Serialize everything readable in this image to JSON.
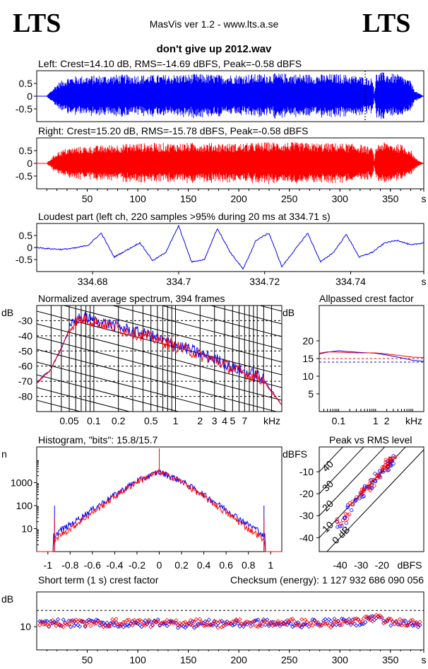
{
  "header": {
    "logo_left": "LTS",
    "logo_right": "LTS",
    "version": "MasVis ver 1.2 - www.lts.a.se",
    "filename": "don't give up 2012.wav"
  },
  "colors": {
    "left": "#0000ff",
    "right": "#ff0000",
    "axis": "#000000"
  },
  "panels": {
    "left_wave": {
      "title": "Left: Crest=14.10 dB, RMS=-14.69 dBFS, Peak=-0.58 dBFS",
      "y_ticks": [
        "0.5",
        "0",
        "-0.5"
      ]
    },
    "right_wave": {
      "title": "Right: Crest=15.20 dB, RMS=-15.78 dBFS, Peak=-0.58 dBFS",
      "y_ticks": [
        "0.5",
        "0",
        "-0.5"
      ],
      "x_ticks": [
        "50",
        "100",
        "150",
        "200",
        "250",
        "300",
        "350",
        "s"
      ]
    },
    "loudest": {
      "title": "Loudest part (left  ch, 220 samples >95% during 20 ms at 334.71 s)",
      "y_ticks": [
        "0.5",
        "0",
        "-0.5"
      ],
      "x_ticks": [
        "334.68",
        "334.7",
        "334.72",
        "334.74",
        "s"
      ]
    },
    "spectrum": {
      "title": "Normalized average spectrum, 394 frames",
      "ylabel": "dB",
      "y_ticks": [
        "-30",
        "-40",
        "-50",
        "-60",
        "-70",
        "-80"
      ],
      "x_ticks": [
        "0.05",
        "0.1",
        "0.2",
        "0.5",
        "1",
        "2",
        "3",
        "4",
        "5",
        "7",
        "kHz"
      ]
    },
    "allpass": {
      "title": "Allpassed crest factor",
      "ylabel": "dB",
      "y_ticks": [
        "20",
        "15",
        "10",
        "5"
      ],
      "x_ticks": [
        "0.1",
        "1",
        "2",
        "kHz"
      ]
    },
    "histogram": {
      "title": "Histogram, \"bits\": 15.8/15.7",
      "ylabel": "n",
      "y_ticks": [
        "1000",
        "100",
        "10"
      ],
      "x_ticks": [
        "-1",
        "-0.8",
        "-0.6",
        "-0.4",
        "-0.2",
        "0",
        "0.2",
        "0.4",
        "0.6",
        "0.8",
        "1"
      ]
    },
    "peak_rms": {
      "title": "Peak vs RMS level",
      "ylabel": "dBFS",
      "y_ticks": [
        "-10",
        "-20",
        "-30",
        "-40"
      ],
      "x_ticks": [
        "-40",
        "-30",
        "-20",
        "dBFS"
      ],
      "diag_labels": [
        "40",
        "30",
        "20",
        "10",
        "0 dB"
      ]
    },
    "crest_short": {
      "title": "Short term (1 s) crest factor",
      "checksum": "Checksum (energy):  1 127 932 686 090 056",
      "ylabel": "dB",
      "y_ticks": [
        "10"
      ],
      "x_ticks": [
        "50",
        "100",
        "150",
        "200",
        "250",
        "300",
        "350",
        "s"
      ]
    }
  },
  "chart_data": [
    {
      "type": "area",
      "title": "Left: Crest=14.10 dB, RMS=-14.69 dBFS, Peak=-0.58 dBFS",
      "xlabel": "s",
      "ylim": [
        -1,
        1
      ],
      "xlim": [
        0,
        383
      ],
      "series": [
        {
          "name": "Left",
          "envelope": {
            "x": [
              0,
              5,
              10,
              20,
              30,
              40,
              60,
              80,
              100,
              120,
              140,
              160,
              180,
              200,
              220,
              240,
              260,
              280,
              300,
              320,
              333,
              334,
              336,
              340,
              350,
              360,
              370,
              375,
              383
            ],
            "y": [
              0,
              0,
              0.02,
              0.5,
              0.75,
              0.8,
              0.82,
              0.85,
              0.85,
              0.84,
              0.86,
              0.88,
              0.85,
              0.86,
              0.88,
              0.9,
              0.88,
              0.86,
              0.88,
              0.8,
              0.7,
              0.1,
              0.9,
              0.95,
              0.9,
              0.85,
              0.6,
              0.2,
              0
            ]
          }
        }
      ]
    },
    {
      "type": "area",
      "title": "Right: Crest=15.20 dB, RMS=-15.78 dBFS, Peak=-0.58 dBFS",
      "xlabel": "s",
      "ylim": [
        -1,
        1
      ],
      "xlim": [
        0,
        383
      ],
      "series": [
        {
          "name": "Right",
          "envelope": {
            "x": [
              0,
              5,
              10,
              20,
              30,
              40,
              60,
              80,
              100,
              120,
              140,
              160,
              180,
              200,
              220,
              240,
              260,
              280,
              300,
              320,
              333,
              334,
              336,
              340,
              350,
              360,
              370,
              375,
              383
            ],
            "y": [
              0,
              0,
              0.02,
              0.45,
              0.6,
              0.65,
              0.7,
              0.75,
              0.8,
              0.8,
              0.8,
              0.82,
              0.8,
              0.78,
              0.82,
              0.85,
              0.82,
              0.8,
              0.8,
              0.75,
              0.6,
              0.1,
              0.7,
              0.85,
              0.8,
              0.75,
              0.55,
              0.2,
              0
            ]
          }
        }
      ]
    },
    {
      "type": "line",
      "title": "Loudest part (left  ch, 220 samples >95% during 20 ms at 334.71 s)",
      "xlabel": "s",
      "xlim": [
        334.667,
        334.757
      ],
      "ylim": [
        -1,
        1
      ],
      "series": [
        {
          "name": "Left",
          "x": [
            334.667,
            334.67,
            334.673,
            334.676,
            334.679,
            334.682,
            334.685,
            334.688,
            334.691,
            334.694,
            334.697,
            334.7,
            334.703,
            334.706,
            334.709,
            334.712,
            334.715,
            334.718,
            334.721,
            334.724,
            334.727,
            334.73,
            334.733,
            334.736,
            334.739,
            334.742,
            334.745,
            334.748,
            334.751,
            334.754,
            334.757
          ],
          "y": [
            0,
            -0.05,
            -0.08,
            -0.02,
            0.1,
            0.6,
            -0.4,
            -0.1,
            0.2,
            -0.55,
            -0.2,
            0.9,
            -0.6,
            -0.5,
            0.8,
            -0.2,
            -0.9,
            0.3,
            0.6,
            -0.8,
            -0.1,
            0.6,
            -0.6,
            -0.2,
            0.55,
            -0.4,
            -0.2,
            0.2,
            0.3,
            0.1,
            0.2
          ]
        }
      ]
    },
    {
      "type": "line",
      "title": "Normalized average spectrum, 394 frames",
      "xlabel": "kHz",
      "ylabel": "dB",
      "xlim": [
        0.02,
        20
      ],
      "ylim": [
        -90,
        -20
      ],
      "x_scale": "log",
      "grid": true,
      "series": [
        {
          "name": "Left",
          "x": [
            0.02,
            0.03,
            0.04,
            0.05,
            0.06,
            0.08,
            0.1,
            0.15,
            0.2,
            0.3,
            0.5,
            0.7,
            1,
            1.5,
            2,
            3,
            4,
            5,
            7,
            10,
            12,
            15,
            20
          ],
          "y": [
            -71,
            -62,
            -48,
            -36,
            -29,
            -28,
            -30,
            -32,
            -34,
            -37,
            -40,
            -43,
            -46,
            -49,
            -52,
            -55,
            -58,
            -61,
            -64,
            -66,
            -69,
            -76,
            -86
          ]
        },
        {
          "name": "Right",
          "x": [
            0.02,
            0.03,
            0.04,
            0.05,
            0.06,
            0.08,
            0.1,
            0.15,
            0.2,
            0.3,
            0.5,
            0.7,
            1,
            1.5,
            2,
            3,
            4,
            5,
            7,
            10,
            12,
            15,
            20
          ],
          "y": [
            -71,
            -62,
            -48,
            -36,
            -30,
            -29,
            -31,
            -33,
            -35,
            -38,
            -41,
            -44,
            -47,
            -50,
            -53,
            -56,
            -59,
            -62,
            -65,
            -67,
            -70,
            -77,
            -86
          ]
        }
      ]
    },
    {
      "type": "line",
      "title": "Allpassed crest factor",
      "xlabel": "kHz",
      "ylabel": "dB",
      "xlim": [
        0.03,
        20
      ],
      "ylim": [
        0,
        25
      ],
      "x_scale": "log",
      "series": [
        {
          "name": "Left",
          "x": [
            0.03,
            0.05,
            0.1,
            0.3,
            1,
            2,
            5,
            10,
            20
          ],
          "y": [
            16.3,
            16.8,
            17.2,
            16.8,
            16.5,
            16.0,
            15.2,
            14.5,
            14.2
          ]
        },
        {
          "name": "Right",
          "x": [
            0.03,
            0.05,
            0.1,
            0.3,
            1,
            2,
            5,
            10,
            20
          ],
          "y": [
            16.5,
            16.9,
            16.8,
            16.6,
            16.6,
            16.3,
            15.8,
            15.4,
            15.3
          ]
        }
      ]
    },
    {
      "type": "line",
      "title": "Histogram, \"bits\": 15.8/15.7",
      "ylabel": "n",
      "xlim": [
        -1.1,
        1.1
      ],
      "y_scale": "log",
      "ylim": [
        1,
        100000
      ],
      "series": [
        {
          "name": "Left",
          "x": [
            -0.93,
            -0.9,
            -0.8,
            -0.6,
            -0.4,
            -0.2,
            0,
            0.2,
            0.4,
            0.6,
            0.8,
            0.9,
            0.93
          ],
          "y": [
            5,
            8,
            15,
            70,
            300,
            1200,
            3000,
            1200,
            300,
            70,
            15,
            8,
            5
          ]
        },
        {
          "name": "Right",
          "x": [
            -0.93,
            -0.9,
            -0.8,
            -0.6,
            -0.4,
            -0.2,
            0,
            0.2,
            0.4,
            0.6,
            0.8,
            0.9,
            0.93
          ],
          "y": [
            3,
            5,
            10,
            50,
            250,
            1100,
            3000,
            1100,
            250,
            50,
            10,
            5,
            3
          ]
        }
      ]
    },
    {
      "type": "scatter",
      "title": "Peak vs RMS level",
      "xlabel": "dBFS",
      "ylabel": "dBFS",
      "xlim": [
        -50,
        0
      ],
      "ylim": [
        -50,
        0
      ],
      "series": [
        {
          "name": "Left",
          "x": [
            -40,
            -38,
            -35,
            -32,
            -30,
            -28,
            -26,
            -24,
            -22,
            -20,
            -18,
            -17,
            -16,
            -15
          ],
          "y": [
            -34,
            -32,
            -26,
            -22,
            -20,
            -18,
            -16,
            -14,
            -12,
            -10,
            -8,
            -6,
            -5,
            -4
          ]
        },
        {
          "name": "Right",
          "x": [
            -40,
            -37,
            -34,
            -31,
            -29,
            -27,
            -25,
            -23,
            -21,
            -19,
            -18,
            -17,
            -16,
            -15
          ],
          "y": [
            -33,
            -30,
            -25,
            -21,
            -19,
            -17,
            -15,
            -13,
            -11,
            -9,
            -7,
            -6,
            -5,
            -4
          ]
        }
      ]
    },
    {
      "type": "scatter",
      "title": "Short term (1 s) crest factor",
      "xlabel": "s",
      "ylabel": "dB",
      "xlim": [
        0,
        383
      ],
      "ylim": [
        0,
        25
      ],
      "series": [
        {
          "name": "Left",
          "x": [
            5,
            20,
            40,
            60,
            80,
            100,
            120,
            140,
            160,
            180,
            200,
            220,
            240,
            260,
            280,
            300,
            320,
            335,
            350,
            370
          ],
          "y": [
            11,
            12,
            11,
            12,
            11,
            11,
            12,
            11,
            11,
            12,
            11,
            12,
            11,
            11,
            12,
            12,
            12,
            14,
            12,
            11
          ]
        },
        {
          "name": "Right",
          "x": [
            5,
            20,
            40,
            60,
            80,
            100,
            120,
            140,
            160,
            180,
            200,
            220,
            240,
            260,
            280,
            300,
            320,
            335,
            350,
            370
          ],
          "y": [
            12,
            11,
            12,
            11,
            12,
            12,
            11,
            12,
            12,
            11,
            12,
            11,
            12,
            12,
            11,
            11,
            13,
            14,
            12,
            12
          ]
        }
      ]
    }
  ]
}
